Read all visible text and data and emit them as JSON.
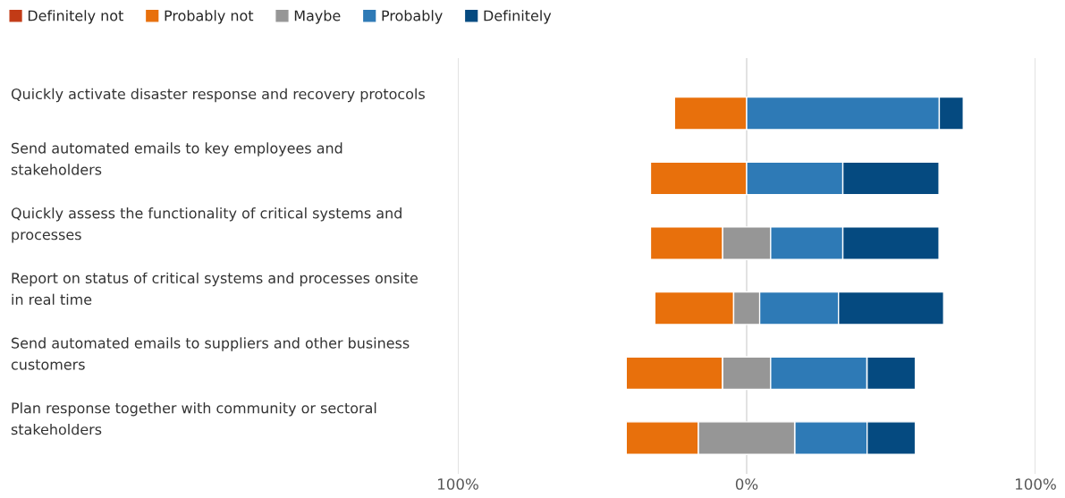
{
  "chart_data": {
    "type": "bar",
    "orientation": "horizontal",
    "categories": [
      "Quickly activate disaster response and recovery protocols",
      "Send automated emails to key employees and stakeholders",
      "Quickly assess the functionality of critical systems and processes",
      "Report on status of critical systems and processes onsite in real time",
      "Send automated emails to suppliers and other business customers",
      "Plan response together with community or sectoral stakeholders"
    ],
    "series": [
      {
        "name": "Definitely not",
        "color": "#c23b16",
        "values": [
          null,
          null,
          null,
          null,
          null,
          null
        ],
        "base": [
          null,
          null,
          null,
          null,
          null,
          null
        ]
      },
      {
        "name": "Probably not",
        "color": "#e8700c",
        "values": [
          25,
          33.3,
          25,
          27.3,
          33.3,
          25
        ],
        "base": [
          -25,
          -33.3,
          -33.3,
          -31.8,
          -41.7,
          -41.7
        ]
      },
      {
        "name": "Maybe",
        "color": "#969696",
        "values": [
          null,
          null,
          16.7,
          9.1,
          16.7,
          33.3
        ],
        "base": [
          null,
          null,
          -8.3,
          -4.5,
          -8.3,
          -16.7
        ]
      },
      {
        "name": "Probably",
        "color": "#2e7ab6",
        "values": [
          66.7,
          33.3,
          25,
          27.3,
          33.3,
          25
        ],
        "base": [
          0,
          0,
          8.3,
          4.5,
          8.3,
          16.7
        ]
      },
      {
        "name": "Definitely",
        "color": "#054a80",
        "values": [
          8.3,
          33.3,
          33.3,
          36.4,
          16.7,
          16.7
        ],
        "base": [
          66.7,
          33.3,
          33.3,
          31.8,
          41.7,
          41.7
        ]
      }
    ],
    "xlim": [
      -100,
      100
    ],
    "xticks": [
      {
        "value": -100,
        "label": "100%"
      },
      {
        "value": 0,
        "label": "0%"
      },
      {
        "value": 100,
        "label": "100%"
      }
    ],
    "grid": "x",
    "legend": "top left"
  }
}
